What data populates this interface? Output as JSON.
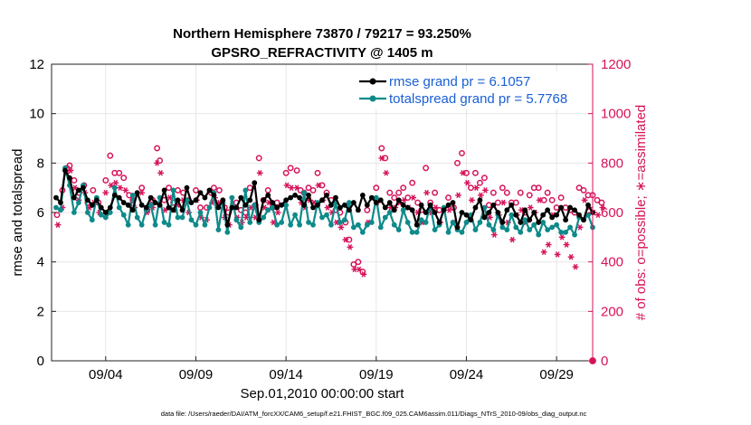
{
  "chart_data": {
    "type": "line",
    "title_line1": "Northern Hemisphere 73870 / 79217 = 93.250%",
    "title_line2": "GPSRO_REFRACTIVITY @ 1405 m",
    "xlabel": "Sep.01,2010 00:00:00 start",
    "ylabel_left": "rmse and totalspread",
    "ylabel_right": "# of obs: o=possible; ∗=assimilated",
    "footnote": "data file: /Users/raeder/DAI/ATM_forcXX/CAM6_setup/f.e21.FHIST_BGC.f09_025.CAM6assim.011/Diags_NTrS_2010-09/obs_diag_output.nc",
    "x_range_days": [
      0.0,
      30.0
    ],
    "x_ticks": [
      {
        "day": 3.0,
        "label": "09/04"
      },
      {
        "day": 8.0,
        "label": "09/09"
      },
      {
        "day": 13.0,
        "label": "09/14"
      },
      {
        "day": 18.0,
        "label": "09/19"
      },
      {
        "day": 23.0,
        "label": "09/24"
      },
      {
        "day": 28.0,
        "label": "09/29"
      }
    ],
    "ylim_left": [
      0,
      12
    ],
    "yticks_left": [
      0,
      2,
      4,
      6,
      8,
      10,
      12
    ],
    "ylim_right": [
      0,
      1200
    ],
    "yticks_right": [
      0,
      200,
      400,
      600,
      800,
      1000,
      1200
    ],
    "legend": [
      {
        "label": "rmse grand pr = 6.1057",
        "color": "#000000"
      },
      {
        "label": "totalspread grand pr = 5.7768",
        "color": "#0e8a8a"
      }
    ],
    "colors": {
      "rmse": "#000000",
      "totalspread": "#0e8a8a",
      "obs": "#d6125a",
      "right_axis": "#d6125a"
    },
    "series": [
      {
        "name": "rmse",
        "x_start_day": 0.25,
        "x_step_day": 0.25,
        "values": [
          6.6,
          6.4,
          7.7,
          7.4,
          6.6,
          6.9,
          7.0,
          6.5,
          6.3,
          6.5,
          6.2,
          6.0,
          6.2,
          6.7,
          6.6,
          6.4,
          6.3,
          6.1,
          6.8,
          6.3,
          6.2,
          6.6,
          6.4,
          6.3,
          6.9,
          6.2,
          6.1,
          6.5,
          6.1,
          7.0,
          6.4,
          6.5,
          6.8,
          6.6,
          6.9,
          6.7,
          6.2,
          6.5,
          5.5,
          6.2,
          6.2,
          6.6,
          6.3,
          6.5,
          7.2,
          5.7,
          6.5,
          6.7,
          6.4,
          6.2,
          6.3,
          6.5,
          6.6,
          6.7,
          6.6,
          6.3,
          6.7,
          6.2,
          6.3,
          6.5,
          6.7,
          6.3,
          6.6,
          6.2,
          6.3,
          6.1,
          6.4,
          6.1,
          6.7,
          6.3,
          6.6,
          6.4,
          6.5,
          6.2,
          6.4,
          6.1,
          6.5,
          6.3,
          6.2,
          6.1,
          5.5,
          6.3,
          6.0,
          6.3,
          6.0,
          5.6,
          6.1,
          6.3,
          6.4,
          5.4,
          6.0,
          5.9,
          5.7,
          6.2,
          6.5,
          5.8,
          6.0,
          6.3,
          6.0,
          5.6,
          6.1,
          6.3,
          5.9,
          5.6,
          6.1,
          5.7,
          6.0,
          5.6,
          5.9,
          6.1,
          5.8,
          5.9,
          6.2,
          5.7,
          6.2,
          6.1,
          5.9,
          5.7,
          6.3,
          6.0
        ]
      },
      {
        "name": "totalspread",
        "x_start_day": 0.25,
        "x_step_day": 0.25,
        "values": [
          6.2,
          6.1,
          7.8,
          7.1,
          6.0,
          6.4,
          7.1,
          6.0,
          5.7,
          6.6,
          5.9,
          5.8,
          6.0,
          7.0,
          6.2,
          5.9,
          5.5,
          6.7,
          5.8,
          5.5,
          6.1,
          6.3,
          5.5,
          6.6,
          5.6,
          5.5,
          6.9,
          5.8,
          5.8,
          6.5,
          5.7,
          5.5,
          6.0,
          5.5,
          6.2,
          6.8,
          5.3,
          6.4,
          5.2,
          6.6,
          5.7,
          5.4,
          6.9,
          5.6,
          6.3,
          5.6,
          5.8,
          6.1,
          6.2,
          5.5,
          5.6,
          6.3,
          5.5,
          5.9,
          5.5,
          6.8,
          5.6,
          5.5,
          6.4,
          5.8,
          5.9,
          5.5,
          6.4,
          5.6,
          5.7,
          6.4,
          5.4,
          5.5,
          5.2,
          5.5,
          5.6,
          6.6,
          5.4,
          5.8,
          6.0,
          5.5,
          5.3,
          6.1,
          5.6,
          5.2,
          5.2,
          5.7,
          5.6,
          6.3,
          5.3,
          5.5,
          6.2,
          5.2,
          5.6,
          5.3,
          5.2,
          5.6,
          5.9,
          5.3,
          5.6,
          6.2,
          5.5,
          5.3,
          5.9,
          5.4,
          5.3,
          5.9,
          5.4,
          5.2,
          5.7,
          5.3,
          5.5,
          5.1,
          5.6,
          5.3,
          5.4,
          5.5,
          5.2,
          5.2,
          5.4,
          5.1,
          5.8,
          5.7,
          5.9,
          5.4
        ]
      }
    ],
    "obs_possible": [
      [
        0.3,
        590
      ],
      [
        0.6,
        690
      ],
      [
        0.85,
        780
      ],
      [
        1.0,
        790
      ],
      [
        1.25,
        730
      ],
      [
        1.5,
        680
      ],
      [
        1.8,
        710
      ],
      [
        2.0,
        640
      ],
      [
        2.3,
        690
      ],
      [
        2.6,
        640
      ],
      [
        3.0,
        730
      ],
      [
        3.25,
        830
      ],
      [
        3.5,
        760
      ],
      [
        3.75,
        760
      ],
      [
        4.0,
        740
      ],
      [
        4.3,
        670
      ],
      [
        4.5,
        650
      ],
      [
        5.0,
        700
      ],
      [
        5.3,
        610
      ],
      [
        5.6,
        650
      ],
      [
        5.85,
        860
      ],
      [
        6.0,
        810
      ],
      [
        6.25,
        650
      ],
      [
        6.5,
        700
      ],
      [
        6.75,
        640
      ],
      [
        7.0,
        690
      ],
      [
        7.3,
        680
      ],
      [
        7.6,
        650
      ],
      [
        8.0,
        690
      ],
      [
        8.25,
        620
      ],
      [
        8.6,
        620
      ],
      [
        8.85,
        680
      ],
      [
        9.0,
        700
      ],
      [
        9.3,
        690
      ],
      [
        9.6,
        620
      ],
      [
        9.8,
        600
      ],
      [
        10.25,
        640
      ],
      [
        10.5,
        610
      ],
      [
        10.75,
        600
      ],
      [
        11.0,
        700
      ],
      [
        11.3,
        630
      ],
      [
        11.5,
        820
      ],
      [
        11.75,
        650
      ],
      [
        12.0,
        690
      ],
      [
        12.25,
        620
      ],
      [
        12.5,
        640
      ],
      [
        13.0,
        760
      ],
      [
        13.25,
        780
      ],
      [
        13.6,
        770
      ],
      [
        13.8,
        690
      ],
      [
        14.0,
        680
      ],
      [
        14.25,
        700
      ],
      [
        14.5,
        690
      ],
      [
        14.75,
        760
      ],
      [
        15.0,
        710
      ],
      [
        15.25,
        680
      ],
      [
        15.5,
        650
      ],
      [
        15.75,
        610
      ],
      [
        16.0,
        600
      ],
      [
        16.3,
        560
      ],
      [
        16.5,
        490
      ],
      [
        16.75,
        390
      ],
      [
        17.0,
        400
      ],
      [
        17.25,
        360
      ],
      [
        17.5,
        610
      ],
      [
        18.0,
        700
      ],
      [
        18.3,
        860
      ],
      [
        18.5,
        820
      ],
      [
        18.75,
        680
      ],
      [
        19.0,
        660
      ],
      [
        19.25,
        680
      ],
      [
        19.5,
        700
      ],
      [
        19.75,
        660
      ],
      [
        20.0,
        720
      ],
      [
        20.3,
        640
      ],
      [
        20.5,
        610
      ],
      [
        20.75,
        780
      ],
      [
        21.0,
        640
      ],
      [
        21.25,
        680
      ],
      [
        21.5,
        610
      ],
      [
        22.0,
        660
      ],
      [
        22.3,
        620
      ],
      [
        22.5,
        800
      ],
      [
        22.75,
        840
      ],
      [
        23.0,
        760
      ],
      [
        23.25,
        700
      ],
      [
        23.5,
        760
      ],
      [
        23.75,
        720
      ],
      [
        24.0,
        740
      ],
      [
        24.25,
        630
      ],
      [
        24.5,
        680
      ],
      [
        24.75,
        640
      ],
      [
        25.0,
        700
      ],
      [
        25.25,
        680
      ],
      [
        25.5,
        640
      ],
      [
        25.75,
        640
      ],
      [
        26.0,
        680
      ],
      [
        26.25,
        600
      ],
      [
        26.5,
        670
      ],
      [
        26.75,
        700
      ],
      [
        27.0,
        700
      ],
      [
        27.3,
        650
      ],
      [
        27.5,
        680
      ],
      [
        27.75,
        650
      ],
      [
        28.0,
        620
      ],
      [
        28.25,
        660
      ],
      [
        28.5,
        620
      ],
      [
        28.75,
        610
      ],
      [
        29.0,
        600
      ],
      [
        29.25,
        700
      ],
      [
        29.5,
        690
      ],
      [
        29.75,
        670
      ],
      [
        30.0,
        670
      ],
      [
        30.25,
        650
      ],
      [
        30.5,
        640
      ]
    ],
    "obs_assimilated": [
      [
        0.35,
        550
      ],
      [
        0.6,
        620
      ],
      [
        0.85,
        760
      ],
      [
        1.05,
        770
      ],
      [
        1.3,
        700
      ],
      [
        1.5,
        650
      ],
      [
        1.85,
        680
      ],
      [
        2.1,
        620
      ],
      [
        2.35,
        640
      ],
      [
        2.65,
        600
      ],
      [
        3.0,
        680
      ],
      [
        3.3,
        710
      ],
      [
        3.55,
        720
      ],
      [
        3.8,
        700
      ],
      [
        4.1,
        690
      ],
      [
        4.3,
        630
      ],
      [
        4.6,
        620
      ],
      [
        5.0,
        680
      ],
      [
        5.3,
        600
      ],
      [
        5.6,
        620
      ],
      [
        5.85,
        800
      ],
      [
        6.05,
        760
      ],
      [
        6.3,
        610
      ],
      [
        6.55,
        660
      ],
      [
        6.8,
        610
      ],
      [
        7.0,
        630
      ],
      [
        7.3,
        650
      ],
      [
        7.6,
        600
      ],
      [
        8.05,
        650
      ],
      [
        8.3,
        580
      ],
      [
        8.6,
        570
      ],
      [
        8.9,
        640
      ],
      [
        9.05,
        660
      ],
      [
        9.3,
        640
      ],
      [
        9.6,
        580
      ],
      [
        9.85,
        550
      ],
      [
        10.3,
        580
      ],
      [
        10.55,
        560
      ],
      [
        10.8,
        580
      ],
      [
        11.05,
        620
      ],
      [
        11.3,
        580
      ],
      [
        11.55,
        760
      ],
      [
        11.8,
        620
      ],
      [
        12.05,
        640
      ],
      [
        12.3,
        560
      ],
      [
        12.55,
        600
      ],
      [
        13.05,
        710
      ],
      [
        13.3,
        700
      ],
      [
        13.6,
        700
      ],
      [
        13.85,
        640
      ],
      [
        14.05,
        620
      ],
      [
        14.3,
        650
      ],
      [
        14.55,
        640
      ],
      [
        14.8,
        710
      ],
      [
        15.05,
        650
      ],
      [
        15.3,
        620
      ],
      [
        15.55,
        600
      ],
      [
        15.8,
        560
      ],
      [
        16.05,
        540
      ],
      [
        16.3,
        490
      ],
      [
        16.55,
        460
      ],
      [
        16.8,
        370
      ],
      [
        17.05,
        370
      ],
      [
        17.3,
        350
      ],
      [
        17.55,
        560
      ],
      [
        18.05,
        640
      ],
      [
        18.3,
        820
      ],
      [
        18.55,
        760
      ],
      [
        18.8,
        620
      ],
      [
        19.05,
        620
      ],
      [
        19.3,
        640
      ],
      [
        19.55,
        650
      ],
      [
        19.8,
        620
      ],
      [
        20.05,
        660
      ],
      [
        20.3,
        600
      ],
      [
        20.55,
        560
      ],
      [
        20.8,
        680
      ],
      [
        21.05,
        600
      ],
      [
        21.3,
        620
      ],
      [
        21.55,
        560
      ],
      [
        22.05,
        610
      ],
      [
        22.3,
        560
      ],
      [
        22.55,
        670
      ],
      [
        22.8,
        760
      ],
      [
        23.05,
        720
      ],
      [
        23.3,
        650
      ],
      [
        23.55,
        700
      ],
      [
        23.8,
        670
      ],
      [
        24.05,
        690
      ],
      [
        24.3,
        580
      ],
      [
        24.55,
        510
      ],
      [
        24.8,
        590
      ],
      [
        25.05,
        640
      ],
      [
        25.3,
        560
      ],
      [
        25.55,
        490
      ],
      [
        25.8,
        590
      ],
      [
        26.05,
        610
      ],
      [
        26.3,
        560
      ],
      [
        26.55,
        620
      ],
      [
        26.8,
        600
      ],
      [
        27.05,
        650
      ],
      [
        27.3,
        440
      ],
      [
        27.55,
        470
      ],
      [
        27.8,
        590
      ],
      [
        28.05,
        430
      ],
      [
        28.3,
        500
      ],
      [
        28.55,
        470
      ],
      [
        28.8,
        420
      ],
      [
        29.05,
        380
      ],
      [
        29.3,
        540
      ],
      [
        29.55,
        650
      ],
      [
        29.8,
        620
      ],
      [
        30.05,
        600
      ],
      [
        30.3,
        590
      ],
      [
        30.55,
        620
      ]
    ]
  }
}
